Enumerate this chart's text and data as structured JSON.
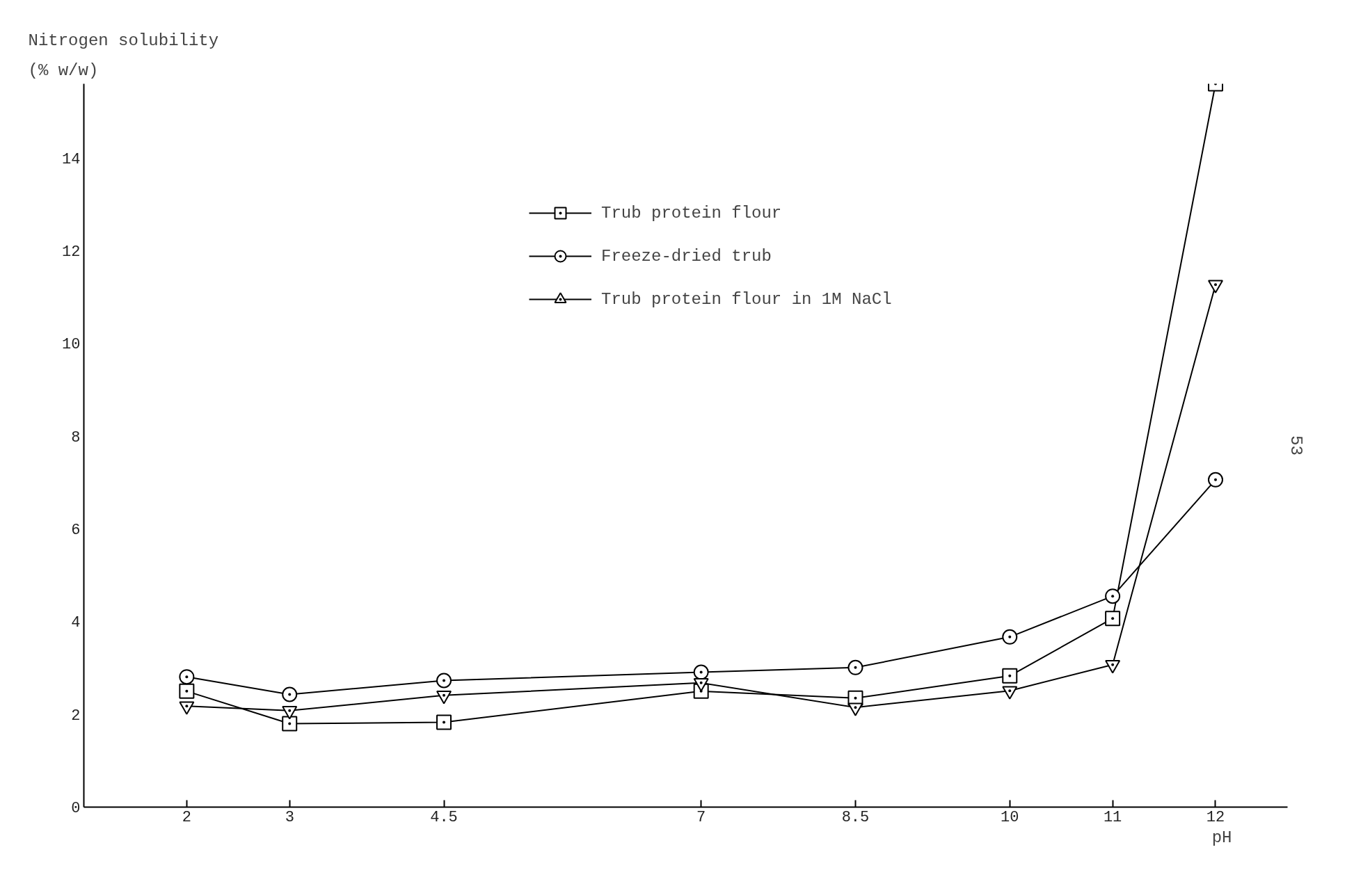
{
  "chart_data": {
    "type": "line",
    "xlabel": "pH",
    "ylabel": "Nitrogen solubility\n(% w/w)",
    "x": [
      2,
      3,
      4.5,
      7,
      8.5,
      10,
      11,
      12
    ],
    "series": [
      {
        "name": "Trub protein flour",
        "color": "#000000",
        "marker": "square",
        "values": [
          2.5,
          1.8,
          1.83,
          2.5,
          2.35,
          2.83,
          4.07,
          15.6
        ]
      },
      {
        "name": "Freeze-dried trub",
        "color": "#000000",
        "marker": "circle",
        "values": [
          2.81,
          2.43,
          2.73,
          2.91,
          3.01,
          3.67,
          4.55,
          7.06
        ]
      },
      {
        "name": "Trub protein flour in 1M NaCl",
        "color": "#000000",
        "marker": "triangle",
        "values": [
          2.18,
          2.08,
          2.41,
          2.68,
          2.15,
          2.51,
          3.07,
          11.27
        ]
      }
    ],
    "xlim": [
      1,
      12.7
    ],
    "ylim": [
      0,
      15.6
    ],
    "xticks": [
      2,
      3,
      4.5,
      7,
      8.5,
      10,
      11,
      12
    ],
    "yticks": [
      0,
      2,
      4,
      6,
      8,
      10,
      12,
      14
    ],
    "grid": false,
    "legend": "top",
    "line_style": "solid",
    "annotations": [
      "53"
    ]
  }
}
